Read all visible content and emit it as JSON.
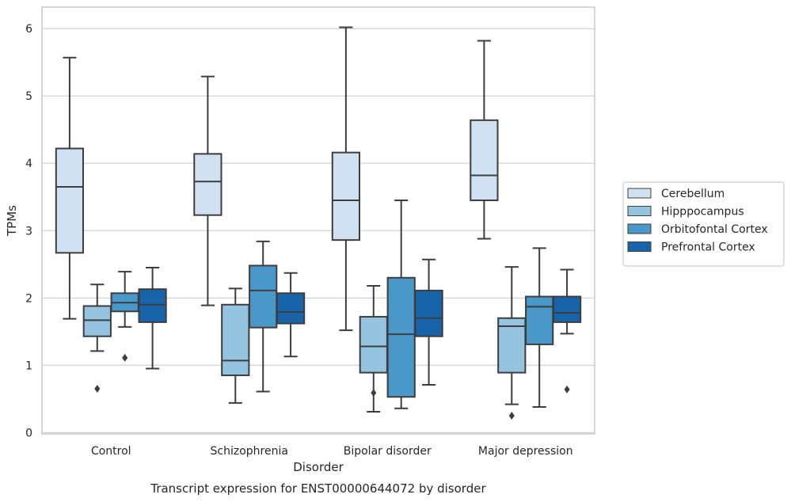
{
  "chart_data": {
    "type": "box",
    "title": "",
    "caption": "Transcript expression for ENST00000644072 by disorder",
    "xlabel": "Disorder",
    "ylabel": "TPMs",
    "ylim": [
      -0.02,
      6.32
    ],
    "yticks": [
      0,
      1,
      2,
      3,
      4,
      5,
      6
    ],
    "grid": "horizontal",
    "legend_position": "right",
    "categories": [
      "Control",
      "Schizophrenia",
      "Bipolar disorder",
      "Major depression"
    ],
    "series": [
      {
        "name": "Cerebellum",
        "color": "#d0e1f2",
        "boxes": [
          {
            "min": 1.69,
            "q1": 2.67,
            "median": 3.65,
            "q3": 4.22,
            "max": 5.57,
            "outliers": []
          },
          {
            "min": 1.89,
            "q1": 3.23,
            "median": 3.73,
            "q3": 4.14,
            "max": 5.29,
            "outliers": []
          },
          {
            "min": 1.52,
            "q1": 2.86,
            "median": 3.45,
            "q3": 4.16,
            "max": 6.02,
            "outliers": []
          },
          {
            "min": 2.88,
            "q1": 3.45,
            "median": 3.82,
            "q3": 4.64,
            "max": 5.82,
            "outliers": []
          }
        ]
      },
      {
        "name": "Hipppocampus",
        "color": "#94c4df",
        "boxes": [
          {
            "min": 1.21,
            "q1": 1.43,
            "median": 1.67,
            "q3": 1.88,
            "max": 2.2,
            "outliers": [
              0.65
            ]
          },
          {
            "min": 0.44,
            "q1": 0.85,
            "median": 1.07,
            "q3": 1.9,
            "max": 2.14,
            "outliers": []
          },
          {
            "min": 0.31,
            "q1": 0.89,
            "median": 1.28,
            "q3": 1.72,
            "max": 2.18,
            "outliers": [
              0.59
            ]
          },
          {
            "min": 0.42,
            "q1": 0.89,
            "median": 1.58,
            "q3": 1.7,
            "max": 2.46,
            "outliers": [
              0.25
            ]
          }
        ]
      },
      {
        "name": "Orbitofontal Cortex",
        "color": "#4a98c9",
        "boxes": [
          {
            "min": 1.57,
            "q1": 1.8,
            "median": 1.93,
            "q3": 2.07,
            "max": 2.39,
            "outliers": [
              1.11
            ]
          },
          {
            "min": 0.61,
            "q1": 1.56,
            "median": 2.11,
            "q3": 2.48,
            "max": 2.84,
            "outliers": []
          },
          {
            "min": 0.36,
            "q1": 0.53,
            "median": 1.46,
            "q3": 2.3,
            "max": 3.45,
            "outliers": []
          },
          {
            "min": 0.38,
            "q1": 1.31,
            "median": 1.87,
            "q3": 2.02,
            "max": 2.74,
            "outliers": []
          }
        ]
      },
      {
        "name": "Prefrontal Cortex",
        "color": "#1764ab",
        "boxes": [
          {
            "min": 0.95,
            "q1": 1.64,
            "median": 1.9,
            "q3": 2.13,
            "max": 2.45,
            "outliers": []
          },
          {
            "min": 1.13,
            "q1": 1.62,
            "median": 1.79,
            "q3": 2.07,
            "max": 2.37,
            "outliers": []
          },
          {
            "min": 0.71,
            "q1": 1.43,
            "median": 1.7,
            "q3": 2.11,
            "max": 2.57,
            "outliers": []
          },
          {
            "min": 1.47,
            "q1": 1.64,
            "median": 1.78,
            "q3": 2.02,
            "max": 2.42,
            "outliers": [
              0.64
            ]
          }
        ]
      }
    ]
  }
}
